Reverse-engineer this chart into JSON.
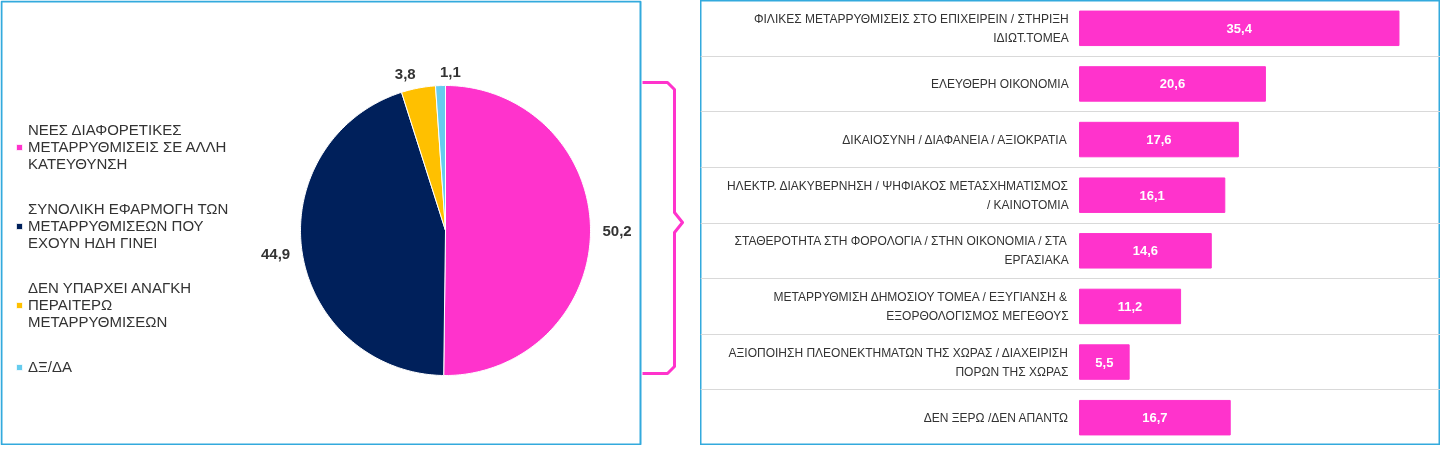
{
  "chart_data": [
    {
      "type": "pie",
      "categories": [
        "ΝΕΕΣ ΔΙΑΦΟΡΕΤΙΚΕΣ ΜΕΤΑΡΡΥΘΜΙΣΕΙΣ ΣΕ ΑΛΛΗ ΚΑΤΕΥΘΥΝΣΗ",
        "ΣΥΝΟΛΙΚΗ ΕΦΑΡΜΟΓΗ ΤΩΝ ΜΕΤΑΡΡΥΘΜΙΣΕΩΝ ΠΟΥ ΕΧΟΥΝ ΗΔΗ ΓΙΝΕΙ",
        "ΔΕΝ ΥΠΑΡΧΕΙ ΑΝΑΓΚΗ ΠΕΡΑΙΤΕΡΩ ΜΕΤΑΡΡΥΘΜΙΣΕΩΝ",
        "ΔΞ/ΔΑ"
      ],
      "values": [
        50.2,
        44.9,
        3.8,
        1.1
      ],
      "colors": [
        "#ff33cc",
        "#00205b",
        "#ffc000",
        "#66ccee"
      ],
      "value_labels": [
        "50,2",
        "44,9",
        "3,8",
        "1,1"
      ],
      "legend": "left"
    },
    {
      "type": "bar",
      "orientation": "horizontal",
      "categories": [
        "ΦΙΛΙΚΕΣ ΜΕΤΑΡΡΥΘΜΙΣΕΙΣ ΣΤΟ ΕΠΙΧΕΙΡΕΙΝ / ΣΤΗΡΙΞΗ ΙΔΙΩΤ.ΤΟΜΕΑ",
        "ΕΛΕΥΘΕΡΗ ΟΙΚΟΝΟΜΙΑ",
        "ΔΙΚΑΙΟΣΥΝΗ / ΔΙΑΦΑΝΕΙΑ / ΑΞΙΟΚΡΑΤΙΑ",
        "ΗΛΕΚΤΡ. ΔΙΑΚΥΒΕΡΝΗΣΗ / ΨΗΦΙΑΚΟΣ ΜΕΤΑΣΧΗΜΑΤΙΣΜΟΣ / ΚΑΙΝΟΤΟΜΙΑ",
        "ΣΤΑΘΕΡΟΤΗΤΑ ΣΤΗ ΦΟΡΟΛΟΓΙΑ / ΣΤΗΝ ΟΙΚΟΝΟΜΙΑ / ΣΤΑ ΕΡΓΑΣΙΑΚΑ",
        "ΜΕΤΑΡΡΥΘΜΙΣΗ ΔΗΜΟΣΙΟΥ ΤΟΜΕΑ / ΕΞΥΓΙΑΝΣΗ & ΕΞΟΡΘΟΛΟΓΙΣΜΟΣ ΜΕΓΕΘΟΥΣ",
        "ΑΞΙΟΠΟΙΗΣΗ ΠΛΕΟΝΕΚΤΗΜΑΤΩΝ ΤΗΣ ΧΩΡΑΣ / ΔΙΑΧΕΙΡΙΣΗ ΠΟΡΩΝ ΤΗΣ ΧΩΡΑΣ",
        "ΔΕΝ ΞΕΡΩ /ΔΕΝ ΑΠΑΝΤΩ"
      ],
      "values": [
        35.4,
        20.6,
        17.6,
        16.1,
        14.6,
        11.2,
        5.5,
        16.7
      ],
      "color": "#ff33cc",
      "value_labels": [
        "35,4",
        "20,6",
        "17,6",
        "16,1",
        "14,6",
        "11,2",
        "5,5",
        "16,7"
      ],
      "grid": "y"
    }
  ]
}
